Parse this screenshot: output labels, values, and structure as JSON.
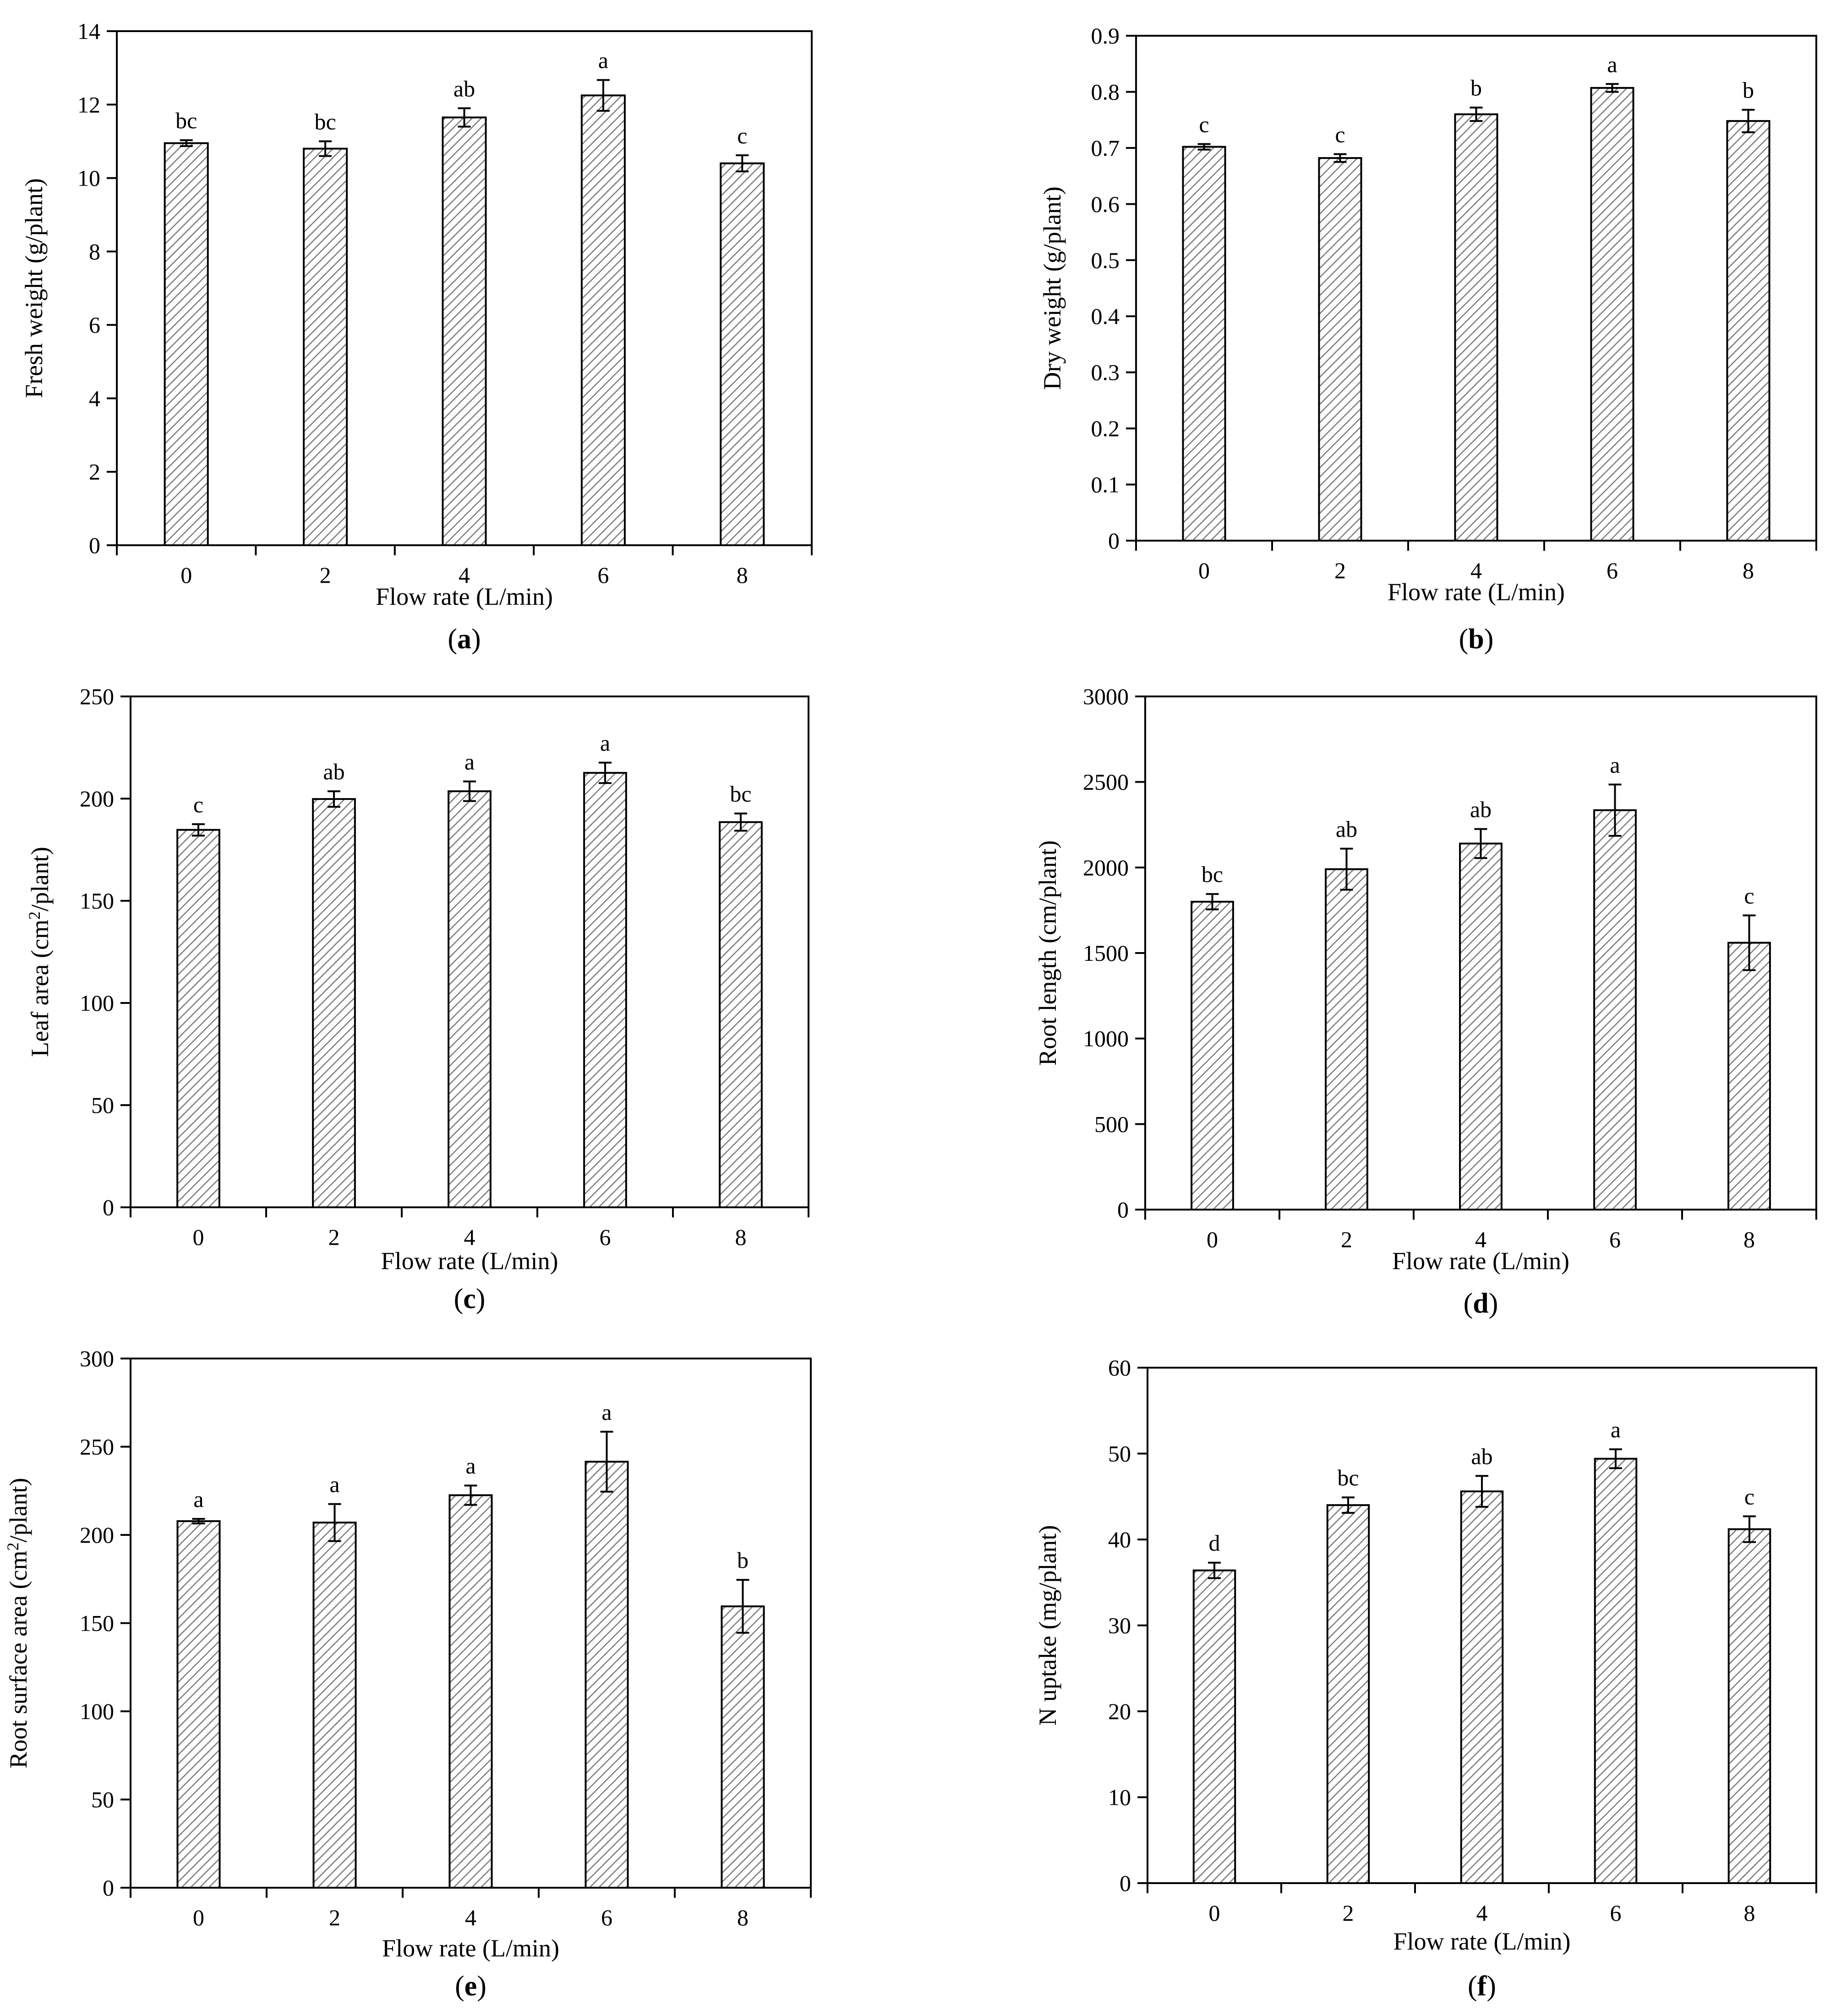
{
  "colors": {
    "bar_fill": "#ffffff",
    "hatch": "#7a7a7a",
    "stroke": "#000000",
    "background": "#ffffff"
  },
  "chart_data": [
    {
      "panel": "(a)",
      "panel_letter": "a",
      "type": "bar",
      "xlabel": "Flow rate (L/min)",
      "ylabel": "Fresh weight (g/plant)",
      "categories": [
        "0",
        "2",
        "4",
        "6",
        "8"
      ],
      "values": [
        10.95,
        10.8,
        11.65,
        12.25,
        10.4
      ],
      "errors": [
        0.08,
        0.2,
        0.25,
        0.42,
        0.22
      ],
      "letters": [
        "bc",
        "bc",
        "ab",
        "a",
        "c"
      ],
      "ylim": [
        0,
        14
      ],
      "yticks": [
        0,
        2,
        4,
        6,
        8,
        10,
        12,
        14
      ],
      "ytick_labels": [
        "0",
        "2",
        "4",
        "6",
        "8",
        "10",
        "12",
        "14"
      ]
    },
    {
      "panel": "(b)",
      "panel_letter": "b",
      "type": "bar",
      "xlabel": "Flow rate (L/min)",
      "ylabel": "Dry weight (g/plant)",
      "categories": [
        "0",
        "2",
        "4",
        "6",
        "8"
      ],
      "values": [
        0.702,
        0.682,
        0.76,
        0.807,
        0.748
      ],
      "errors": [
        0.005,
        0.007,
        0.012,
        0.007,
        0.02
      ],
      "letters": [
        "c",
        "c",
        "b",
        "a",
        "b"
      ],
      "ylim": [
        0,
        0.9
      ],
      "yticks": [
        0,
        0.1,
        0.2,
        0.3,
        0.4,
        0.5,
        0.6,
        0.7,
        0.8,
        0.9
      ],
      "ytick_labels": [
        "0",
        "0.1",
        "0.2",
        "0.3",
        "0.4",
        "0.5",
        "0.6",
        "0.7",
        "0.8",
        "0.9"
      ]
    },
    {
      "panel": "(c)",
      "panel_letter": "c",
      "type": "bar",
      "xlabel": "Flow rate (L/min)",
      "ylabel_main": "Leaf area (cm",
      "ylabel_sup": "2",
      "ylabel_tail": "/plant)",
      "categories": [
        "0",
        "2",
        "4",
        "6",
        "8"
      ],
      "values": [
        184.7,
        199.8,
        203.6,
        212.6,
        188.5
      ],
      "errors": [
        2.8,
        3.8,
        4.8,
        5.0,
        4.2
      ],
      "letters": [
        "c",
        "ab",
        "a",
        "a",
        "bc"
      ],
      "ylim": [
        0,
        250
      ],
      "yticks": [
        0,
        50,
        100,
        150,
        200,
        250
      ],
      "ytick_labels": [
        "0",
        "50",
        "100",
        "150",
        "200",
        "250"
      ]
    },
    {
      "panel": "(d)",
      "panel_letter": "d",
      "type": "bar",
      "xlabel": "Flow rate (L/min)",
      "ylabel": "Root length (cm/plant)",
      "categories": [
        "0",
        "2",
        "4",
        "6",
        "8"
      ],
      "values": [
        1800,
        1990,
        2140,
        2335,
        1560
      ],
      "errors": [
        45,
        120,
        85,
        150,
        160
      ],
      "letters": [
        "bc",
        "ab",
        "ab",
        "a",
        "c"
      ],
      "ylim": [
        0,
        3000
      ],
      "yticks": [
        0,
        500,
        1000,
        1500,
        2000,
        2500,
        3000
      ],
      "ytick_labels": [
        "0",
        "500",
        "1000",
        "1500",
        "2000",
        "2500",
        "3000"
      ]
    },
    {
      "panel": "(e)",
      "panel_letter": "e",
      "type": "bar",
      "xlabel": "Flow rate (L/min)",
      "ylabel_main": "Root surface area (cm",
      "ylabel_sup": "2",
      "ylabel_tail": "/plant)",
      "categories": [
        "0",
        "2",
        "4",
        "6",
        "8"
      ],
      "values": [
        207.8,
        207,
        222.5,
        241.5,
        159.5
      ],
      "errors": [
        1.3,
        10.5,
        5.5,
        17,
        15
      ],
      "letters": [
        "a",
        "a",
        "a",
        "a",
        "b"
      ],
      "ylim": [
        0,
        300
      ],
      "yticks": [
        0,
        50,
        100,
        150,
        200,
        250,
        300
      ],
      "ytick_labels": [
        "0",
        "50",
        "100",
        "150",
        "200",
        "250",
        "300"
      ]
    },
    {
      "panel": "(f)",
      "panel_letter": "f",
      "type": "bar",
      "xlabel": "Flow rate (L/min)",
      "ylabel": "N uptake (mg/plant)",
      "categories": [
        "0",
        "2",
        "4",
        "6",
        "8"
      ],
      "values": [
        36.4,
        44,
        45.6,
        49.4,
        41.2
      ],
      "errors": [
        0.9,
        0.9,
        1.8,
        1.1,
        1.5
      ],
      "letters": [
        "d",
        "bc",
        "ab",
        "a",
        "c"
      ],
      "ylim": [
        0,
        60
      ],
      "yticks": [
        0,
        10,
        20,
        30,
        40,
        50,
        60
      ],
      "ytick_labels": [
        "0",
        "10",
        "20",
        "30",
        "40",
        "50",
        "60"
      ]
    }
  ]
}
